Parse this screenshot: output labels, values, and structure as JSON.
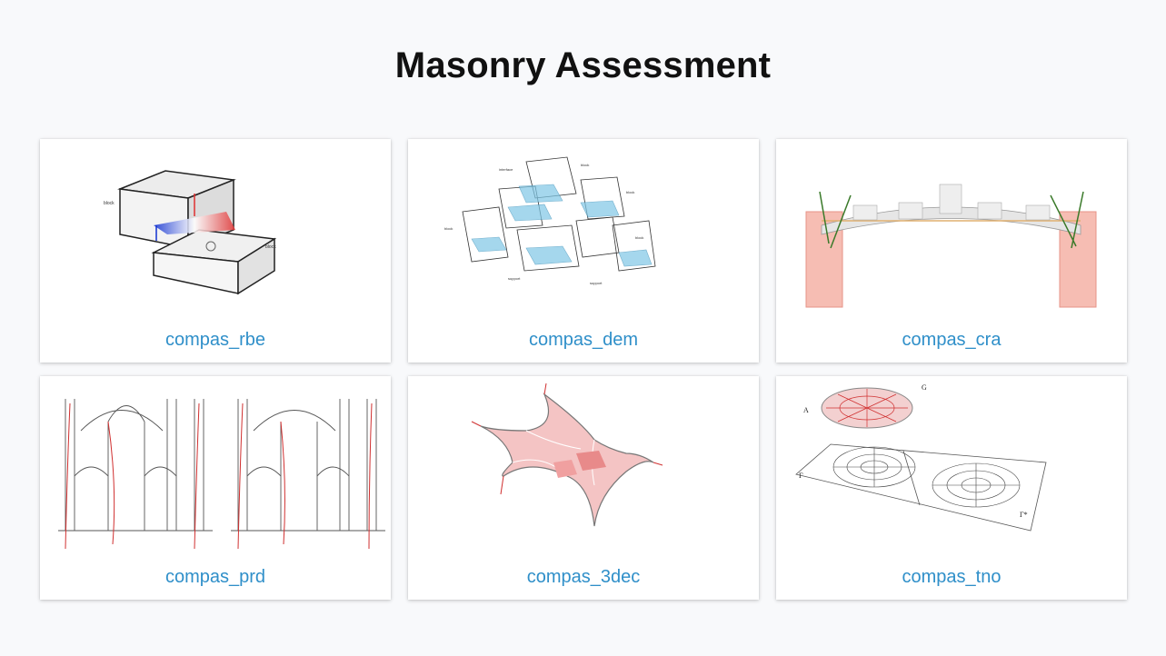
{
  "page": {
    "title": "Masonry Assessment"
  },
  "cards": [
    {
      "label": "compas_rbe",
      "thumbnail_icon": "rigid-block-interface-diagram"
    },
    {
      "label": "compas_dem",
      "thumbnail_icon": "discrete-element-assembly-diagram"
    },
    {
      "label": "compas_cra",
      "thumbnail_icon": "coupled-rigid-block-arch-model"
    },
    {
      "label": "compas_prd",
      "thumbnail_icon": "gothic-cathedral-section-drawing"
    },
    {
      "label": "compas_3dec",
      "thumbnail_icon": "shell-vault-mesh-model"
    },
    {
      "label": "compas_tno",
      "thumbnail_icon": "thrust-network-dome-diagram"
    }
  ],
  "colors": {
    "link": "#2f8fc9",
    "background": "#f8f9fb",
    "card": "#ffffff"
  }
}
